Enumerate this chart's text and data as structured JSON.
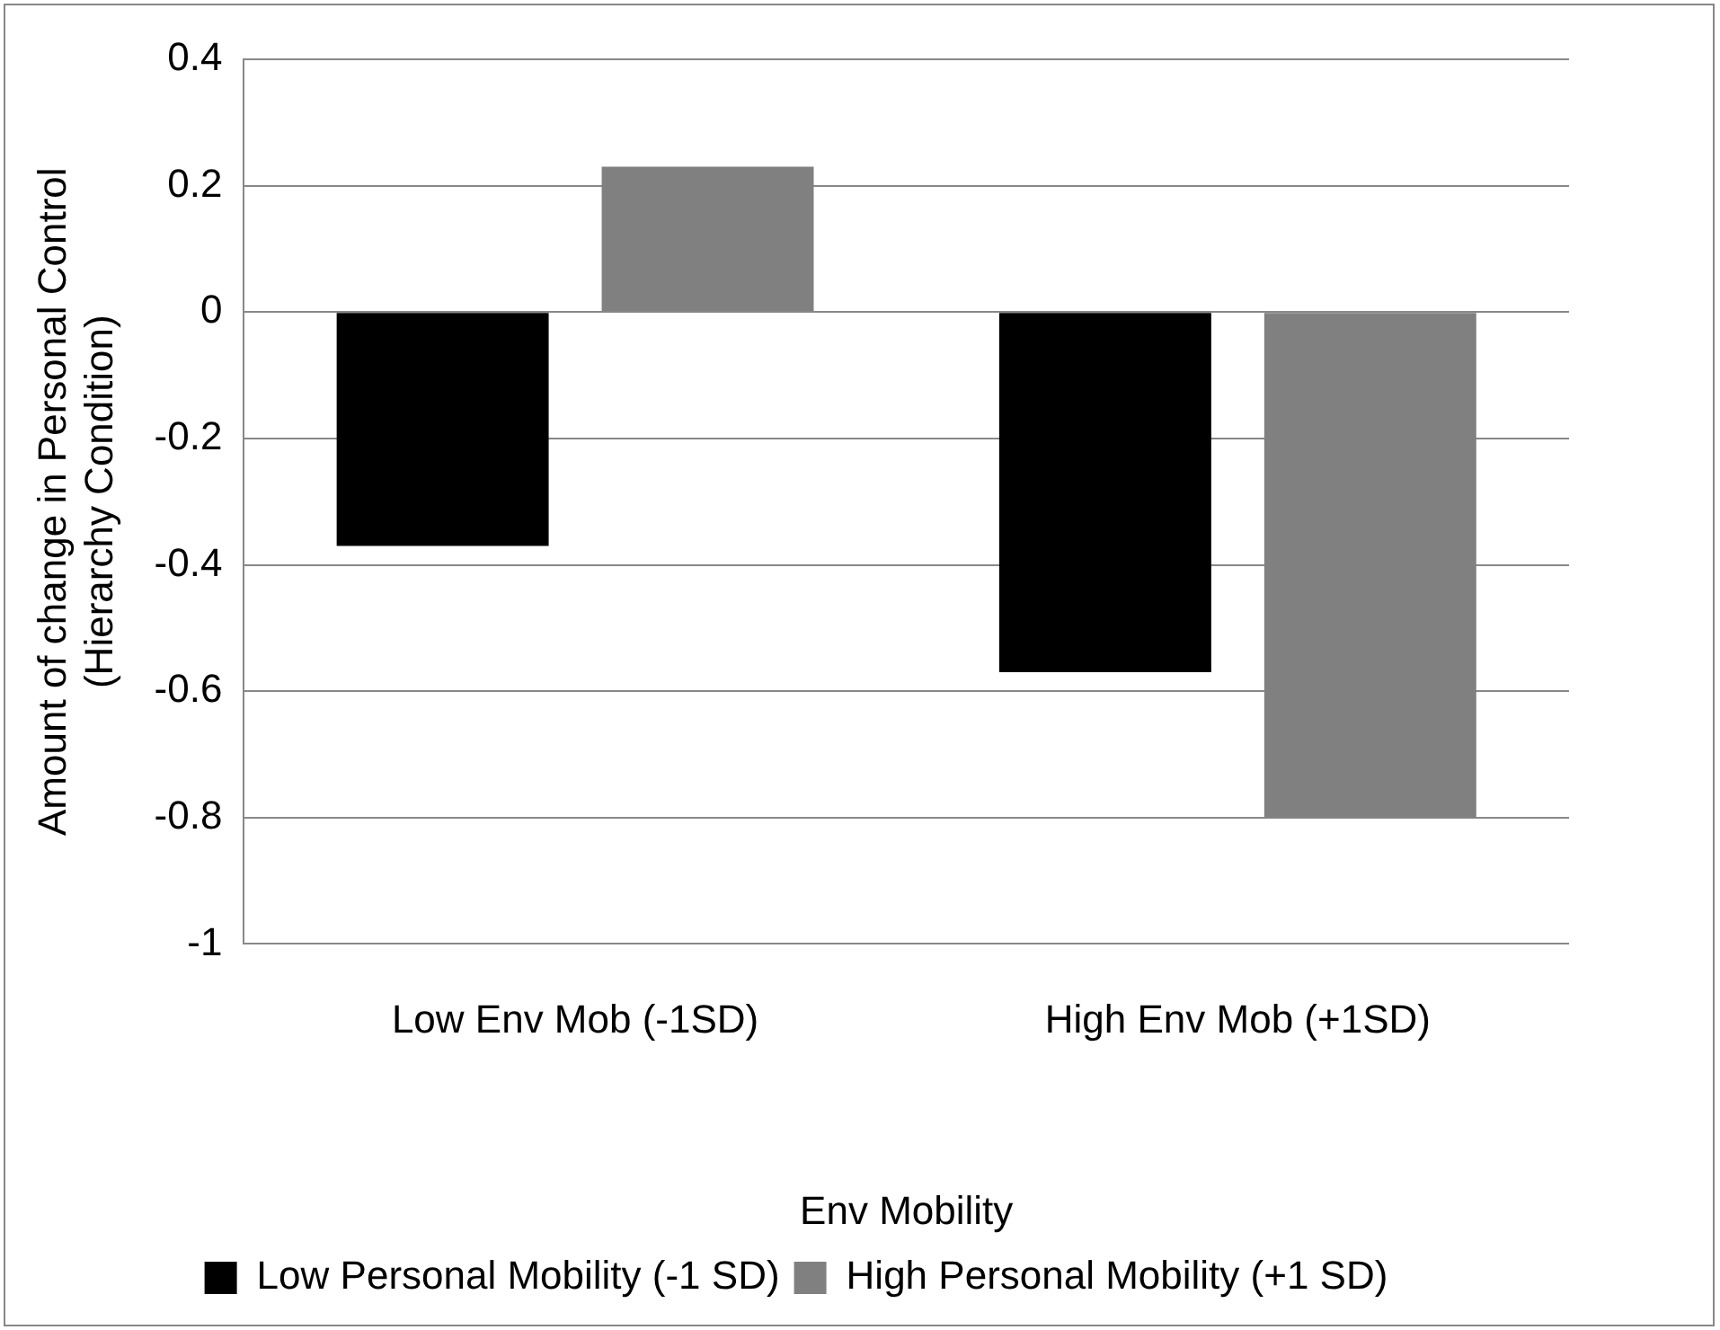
{
  "chart_data": {
    "type": "bar",
    "xlabel": "Env Mobility",
    "ylabel": "Amount of change in Personal Control (Hierarchy Condition)",
    "categories": [
      "Low Env Mob (-1SD)",
      "High Env Mob (+1SD)"
    ],
    "series": [
      {
        "name": "Low Personal Mobility (-1 SD)",
        "color": "#000000",
        "values": [
          -0.37,
          -0.57
        ]
      },
      {
        "name": "High Personal Mobility (+1 SD)",
        "color": "#808080",
        "values": [
          0.23,
          -0.8
        ]
      }
    ],
    "ylim": [
      -1,
      0.4
    ],
    "yticks": [
      -1,
      -0.8,
      -0.6,
      -0.4,
      -0.2,
      0,
      0.2,
      0.4
    ],
    "grid": "y",
    "legend": "bottom"
  }
}
